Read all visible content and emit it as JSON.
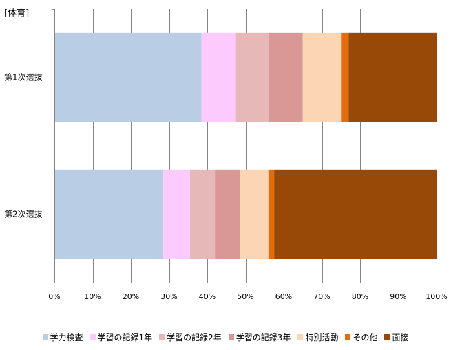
{
  "chart_data": {
    "type": "bar",
    "orientation": "horizontal",
    "stacked": "percent",
    "title": "[体育]",
    "categories": [
      "第1次選抜",
      "第2次選抜"
    ],
    "series": [
      {
        "name": "学力検査",
        "values": [
          38.5,
          28.5
        ],
        "color": "#b9cde4"
      },
      {
        "name": "学習の記録1年",
        "values": [
          9,
          7
        ],
        "color": "#fccafc"
      },
      {
        "name": "学習の記録2年",
        "values": [
          8.5,
          6.5
        ],
        "color": "#e6b9b8"
      },
      {
        "name": "学習の記録3年",
        "values": [
          9,
          6.5
        ],
        "color": "#d99795"
      },
      {
        "name": "特別活動",
        "values": [
          10,
          7.5
        ],
        "color": "#fcd5b5"
      },
      {
        "name": "その他",
        "values": [
          2,
          1.5
        ],
        "color": "#e46c0a"
      },
      {
        "name": "面接",
        "values": [
          23,
          42.5
        ],
        "color": "#984807"
      }
    ],
    "x_ticks": [
      "0%",
      "10%",
      "20%",
      "30%",
      "40%",
      "50%",
      "60%",
      "70%",
      "80%",
      "90%",
      "100%"
    ],
    "xlim": [
      0,
      100
    ],
    "grid": true,
    "legend_position": "bottom"
  }
}
